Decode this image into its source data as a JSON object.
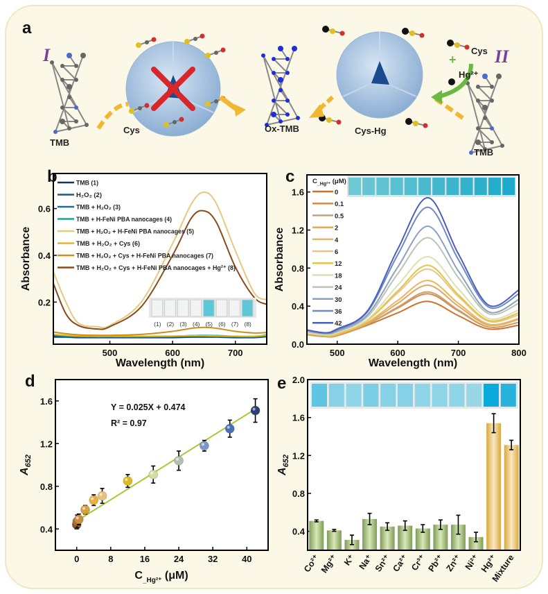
{
  "scheme": {
    "panel_label": "a",
    "route_I": "I",
    "route_II": "II",
    "labels": {
      "tmb_left": "TMB",
      "cys_left": "Cys",
      "ox_tmb": "Ox-TMB",
      "cys_hg": "Cys-Hg",
      "cys_right": "Cys",
      "hg": "Hg²⁺",
      "tmb_right": "TMB"
    },
    "colors": {
      "cage": "#a9c3e0",
      "arrow": "#f2b630",
      "green_arrow": "#6cb844",
      "cross": "#d8262a",
      "ox_tmb": "#1a2ee0",
      "background": "#fbf8e8"
    }
  },
  "chart_data": [
    {
      "panel": "b",
      "type": "line",
      "xlabel": "Wavelength (nm)",
      "ylabel": "Absorbance",
      "xlim": [
        410,
        750
      ],
      "ylim": [
        0.02,
        0.75
      ],
      "xticks": [
        500,
        600,
        700
      ],
      "yticks": [
        0.2,
        0.4,
        0.6
      ],
      "ytick_labels": [
        "0.2",
        "0.4",
        "0.6"
      ],
      "legend_position": "top-left",
      "x": [
        410,
        430,
        450,
        480,
        500,
        550,
        600,
        630,
        650,
        670,
        700,
        730,
        750
      ],
      "series": [
        {
          "name": "TMB (1)",
          "color": "#0b3a5e",
          "values": [
            0.055,
            0.052,
            0.05,
            0.05,
            0.05,
            0.05,
            0.05,
            0.051,
            0.052,
            0.051,
            0.05,
            0.05,
            0.055
          ]
        },
        {
          "name": "H₂O₂ (2)",
          "color": "#1a5a8a",
          "values": [
            0.05,
            0.05,
            0.048,
            0.048,
            0.048,
            0.048,
            0.048,
            0.05,
            0.05,
            0.05,
            0.048,
            0.048,
            0.052
          ]
        },
        {
          "name": "TMB + H₂O₂ (3)",
          "color": "#1b6f8c",
          "values": [
            0.058,
            0.055,
            0.053,
            0.052,
            0.052,
            0.052,
            0.053,
            0.056,
            0.057,
            0.056,
            0.053,
            0.052,
            0.058
          ]
        },
        {
          "name": "TMB + H-FeNi PBA nanocages (4)",
          "color": "#22a09a",
          "values": [
            0.06,
            0.056,
            0.054,
            0.053,
            0.053,
            0.053,
            0.054,
            0.057,
            0.058,
            0.057,
            0.054,
            0.053,
            0.06
          ]
        },
        {
          "name": "TMB + H₂O₂ + H-FeNi PBA nanocages (5)",
          "color": "#e6c87e",
          "values": [
            0.33,
            0.2,
            0.11,
            0.095,
            0.1,
            0.2,
            0.45,
            0.62,
            0.67,
            0.62,
            0.42,
            0.24,
            0.21
          ]
        },
        {
          "name": "TMB + H₂O₂ + Cys (6)",
          "color": "#e3b81e",
          "values": [
            0.062,
            0.058,
            0.055,
            0.054,
            0.054,
            0.054,
            0.055,
            0.056,
            0.056,
            0.055,
            0.054,
            0.054,
            0.058
          ]
        },
        {
          "name": "TMB + H₂O₂ + Cys + H-FeNi PBA nanocages (7)",
          "color": "#c8901c",
          "values": [
            0.072,
            0.065,
            0.06,
            0.058,
            0.058,
            0.062,
            0.075,
            0.088,
            0.092,
            0.088,
            0.075,
            0.068,
            0.07
          ]
        },
        {
          "name": "TMB + H₂O₂ + Cys + H-FeNi PBA nanocages + Hg²⁺ (8)",
          "color": "#8a4a1a",
          "values": [
            0.28,
            0.15,
            0.1,
            0.085,
            0.095,
            0.18,
            0.4,
            0.56,
            0.59,
            0.54,
            0.35,
            0.22,
            0.19
          ]
        }
      ],
      "inset_labels": [
        "(1)",
        "(2)",
        "(3)",
        "(4)",
        "(5)",
        "(6)",
        "(7)",
        "(8)"
      ],
      "inset_blue": [
        false,
        false,
        false,
        false,
        true,
        false,
        false,
        true
      ]
    },
    {
      "panel": "c",
      "type": "line",
      "xlabel": "Wavelength (nm)",
      "ylabel": "Absorbance",
      "xlim": [
        450,
        800
      ],
      "ylim": [
        0,
        1.78
      ],
      "xticks": [
        500,
        600,
        700,
        800
      ],
      "yticks": [
        0,
        0.4,
        0.8,
        1.2,
        1.6
      ],
      "ytick_labels": [
        "0.0",
        "0.4",
        "0.8",
        "1.2",
        "1.6"
      ],
      "legend_title": "C_Hg²⁺ (μM)",
      "legend_position": "top-left",
      "x": [
        450,
        480,
        500,
        550,
        600,
        650,
        700,
        750,
        800
      ],
      "series": [
        {
          "name": "0",
          "color": "#d0702a",
          "values": [
            0.1,
            0.08,
            0.09,
            0.2,
            0.33,
            0.45,
            0.3,
            0.16,
            0.2
          ]
        },
        {
          "name": "0.1",
          "color": "#d98a4a",
          "values": [
            0.1,
            0.08,
            0.09,
            0.21,
            0.38,
            0.53,
            0.35,
            0.18,
            0.23
          ]
        },
        {
          "name": "0.5",
          "color": "#c9a070",
          "values": [
            0.1,
            0.08,
            0.1,
            0.21,
            0.39,
            0.55,
            0.36,
            0.18,
            0.23
          ]
        },
        {
          "name": "2",
          "color": "#e0a860",
          "values": [
            0.11,
            0.09,
            0.1,
            0.22,
            0.43,
            0.62,
            0.4,
            0.2,
            0.26
          ]
        },
        {
          "name": "4",
          "color": "#ebb65a",
          "values": [
            0.11,
            0.09,
            0.1,
            0.23,
            0.46,
            0.67,
            0.43,
            0.21,
            0.27
          ]
        },
        {
          "name": "6",
          "color": "#e8c48a",
          "values": [
            0.12,
            0.09,
            0.11,
            0.25,
            0.54,
            0.79,
            0.5,
            0.24,
            0.31
          ]
        },
        {
          "name": "12",
          "color": "#e3c44a",
          "values": [
            0.12,
            0.09,
            0.11,
            0.25,
            0.56,
            0.83,
            0.52,
            0.25,
            0.33
          ]
        },
        {
          "name": "18",
          "color": "#dde0b0",
          "values": [
            0.12,
            0.1,
            0.12,
            0.26,
            0.62,
            0.92,
            0.58,
            0.27,
            0.36
          ]
        },
        {
          "name": "24",
          "color": "#b8c4b4",
          "values": [
            0.13,
            0.11,
            0.13,
            0.29,
            0.74,
            1.12,
            0.7,
            0.32,
            0.43
          ]
        },
        {
          "name": "30",
          "color": "#8ea0c0",
          "values": [
            0.14,
            0.11,
            0.14,
            0.31,
            0.81,
            1.24,
            0.77,
            0.34,
            0.47
          ]
        },
        {
          "name": "36",
          "color": "#6e88c8",
          "values": [
            0.15,
            0.12,
            0.15,
            0.34,
            0.94,
            1.44,
            0.89,
            0.39,
            0.53
          ]
        },
        {
          "name": "42",
          "color": "#4a60b8",
          "values": [
            0.15,
            0.12,
            0.16,
            0.35,
            1.0,
            1.54,
            0.95,
            0.41,
            0.57
          ]
        }
      ]
    },
    {
      "panel": "d",
      "type": "scatter",
      "xlabel": "C_Hg²⁺ (μM)",
      "ylabel": "A652",
      "xlim": [
        -5,
        45
      ],
      "ylim": [
        0.2,
        1.8
      ],
      "xticks": [
        0,
        8,
        16,
        24,
        32,
        40
      ],
      "yticks": [
        0.4,
        0.8,
        1.2,
        1.6
      ],
      "ytick_labels": [
        "0.4",
        "0.8",
        "1.2",
        "1.6"
      ],
      "equation": "Y = 0.025X + 0.474",
      "r_squared": "R² = 0.97",
      "fit": {
        "slope": 0.025,
        "intercept": 0.474,
        "color": "#a8c83a"
      },
      "points": [
        {
          "x": 0,
          "y": 0.44,
          "err": 0.04,
          "color": "#8a5a2a"
        },
        {
          "x": 0.1,
          "y": 0.47,
          "err": 0.06,
          "color": "#b07030"
        },
        {
          "x": 0.5,
          "y": 0.49,
          "err": 0.05,
          "color": "#c89040"
        },
        {
          "x": 2,
          "y": 0.58,
          "err": 0.04,
          "color": "#d8a040"
        },
        {
          "x": 4,
          "y": 0.67,
          "err": 0.05,
          "color": "#e8b040"
        },
        {
          "x": 6,
          "y": 0.71,
          "err": 0.07,
          "color": "#e8c27a"
        },
        {
          "x": 12,
          "y": 0.85,
          "err": 0.06,
          "color": "#e0b820"
        },
        {
          "x": 18,
          "y": 0.91,
          "err": 0.08,
          "color": "#d4dca0"
        },
        {
          "x": 24,
          "y": 1.04,
          "err": 0.09,
          "color": "#b4c0b0"
        },
        {
          "x": 30,
          "y": 1.18,
          "err": 0.05,
          "color": "#7d98c8"
        },
        {
          "x": 36,
          "y": 1.34,
          "err": 0.08,
          "color": "#4a70b8"
        },
        {
          "x": 42,
          "y": 1.51,
          "err": 0.11,
          "color": "#2c3e78"
        }
      ]
    },
    {
      "panel": "e",
      "type": "bar",
      "ylabel": "A652",
      "ylim": [
        0.2,
        2.0
      ],
      "yticks": [
        0.4,
        0.8,
        1.2,
        1.6,
        2.0
      ],
      "ytick_labels": [
        "0.4",
        "0.8",
        "1.2",
        "1.6",
        "2.0"
      ],
      "categories": [
        "Co²⁺",
        "Mg²⁺",
        "K⁺",
        "Na⁺",
        "Sn²⁺",
        "Ca²⁺",
        "Cr³⁺",
        "Pb²⁺",
        "Zn²⁺",
        "Ni²⁺",
        "Hg²⁺",
        "Mixture"
      ],
      "values": [
        0.51,
        0.41,
        0.31,
        0.53,
        0.45,
        0.46,
        0.43,
        0.47,
        0.47,
        0.34,
        1.54,
        1.31
      ],
      "errors": [
        0.01,
        0.01,
        0.05,
        0.06,
        0.04,
        0.05,
        0.04,
        0.05,
        0.1,
        0.05,
        0.1,
        0.05
      ],
      "bar_colors": [
        "#a8c080",
        "#a8c080",
        "#a8c080",
        "#a8c080",
        "#a8c080",
        "#a8c080",
        "#a8c080",
        "#a8c080",
        "#a8c080",
        "#a8c080",
        "#e8c070",
        "#e8c070"
      ],
      "inset_shade": [
        0.55,
        0.35,
        0.3,
        0.4,
        0.35,
        0.35,
        0.3,
        0.3,
        0.3,
        0.25,
        1.0,
        0.85
      ]
    }
  ]
}
